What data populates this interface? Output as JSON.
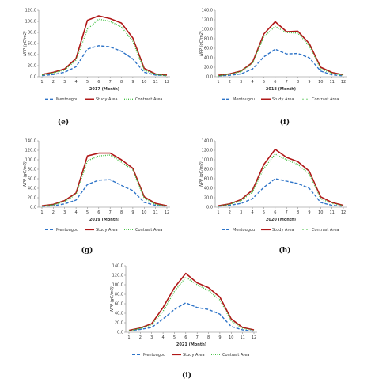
{
  "colors": {
    "mentougou": "#2e74c8",
    "study": "#b01818",
    "contrast": "#3fbf3f",
    "axis": "#7f7f7f"
  },
  "panel_captions": [
    "(e)",
    "(f)",
    "(g)",
    "(h)",
    "(i)"
  ],
  "chart_data": [
    {
      "type": "line",
      "xlabel": "2017 (Month)",
      "ylabel": "NPP (gC/m2)",
      "ylim": [
        0,
        120
      ],
      "yticks": [
        "0.0",
        "20.0",
        "40.0",
        "60.0",
        "80.0",
        "100.0",
        "120.0"
      ],
      "categories": [
        "1",
        "2",
        "3",
        "4",
        "5",
        "6",
        "7",
        "8",
        "9",
        "10",
        "11",
        "12"
      ],
      "legend_position": "bottom",
      "grid": false,
      "series": [
        {
          "name": "Mentougou",
          "style": "dashed",
          "values": [
            2,
            4,
            8,
            18,
            50,
            56,
            54,
            46,
            32,
            8,
            3,
            2
          ]
        },
        {
          "name": "Study Area",
          "style": "solid",
          "values": [
            4,
            8,
            14,
            33,
            102,
            110,
            105,
            97,
            70,
            15,
            5,
            3
          ]
        },
        {
          "name": "Contrast Area",
          "style": "dotted",
          "values": [
            3,
            7,
            12,
            30,
            86,
            104,
            100,
            90,
            64,
            12,
            4,
            2
          ]
        }
      ]
    },
    {
      "type": "line",
      "xlabel": "2018 (Month)",
      "ylabel": "NPP (gC/m2)",
      "ylim": [
        0,
        140
      ],
      "yticks": [
        "0.0",
        "20.0",
        "40.0",
        "60.0",
        "80.0",
        "100.0",
        "120.0",
        "140.0"
      ],
      "categories": [
        "1",
        "2",
        "3",
        "4",
        "5",
        "6",
        "7",
        "8",
        "9",
        "10",
        "11",
        "12"
      ],
      "legend_position": "bottom",
      "grid": false,
      "series": [
        {
          "name": "Mentougou",
          "style": "dashed",
          "values": [
            2,
            3,
            6,
            16,
            42,
            58,
            48,
            49,
            40,
            12,
            4,
            2
          ]
        },
        {
          "name": "Study Area",
          "style": "solid",
          "values": [
            3,
            6,
            12,
            30,
            90,
            116,
            95,
            96,
            70,
            20,
            9,
            4
          ]
        },
        {
          "name": "Contrast Area",
          "style": "dotted",
          "values": [
            2,
            5,
            11,
            28,
            84,
            106,
            93,
            92,
            65,
            17,
            7,
            3
          ]
        }
      ]
    },
    {
      "type": "line",
      "xlabel": "2019 (Month)",
      "ylabel": "NPP (gC/m2)",
      "ylim": [
        0,
        140
      ],
      "yticks": [
        "0.0",
        "20.0",
        "40.0",
        "60.0",
        "80.0",
        "100.0",
        "120.0",
        "140.0"
      ],
      "categories": [
        "1",
        "2",
        "3",
        "4",
        "5",
        "6",
        "7",
        "8",
        "9",
        "10",
        "11",
        "12"
      ],
      "legend_position": "bottom",
      "grid": false,
      "series": [
        {
          "name": "Mentougou",
          "style": "dashed",
          "values": [
            2,
            3,
            7,
            15,
            48,
            57,
            58,
            46,
            35,
            10,
            4,
            2
          ]
        },
        {
          "name": "Study Area",
          "style": "solid",
          "values": [
            3,
            6,
            14,
            30,
            108,
            114,
            114,
            100,
            82,
            22,
            8,
            3
          ]
        },
        {
          "name": "Contrast Area",
          "style": "dotted",
          "values": [
            2,
            5,
            12,
            27,
            98,
            108,
            110,
            95,
            78,
            19,
            6,
            2
          ]
        }
      ]
    },
    {
      "type": "line",
      "xlabel": "2020 (Month)",
      "ylabel": "NPP (gC/m2)",
      "ylim": [
        0,
        140
      ],
      "yticks": [
        "0.0",
        "20.0",
        "40.0",
        "60.0",
        "80.0",
        "100.0",
        "120.0",
        "140.0"
      ],
      "categories": [
        "1",
        "2",
        "3",
        "4",
        "5",
        "6",
        "7",
        "8",
        "9",
        "10",
        "11",
        "12"
      ],
      "legend_position": "bottom",
      "grid": false,
      "series": [
        {
          "name": "Mentougou",
          "style": "dashed",
          "values": [
            2,
            4,
            8,
            18,
            42,
            60,
            55,
            50,
            40,
            10,
            4,
            2
          ]
        },
        {
          "name": "Study Area",
          "style": "solid",
          "values": [
            3,
            7,
            16,
            36,
            90,
            122,
            105,
            96,
            76,
            22,
            10,
            4
          ]
        },
        {
          "name": "Contrast Area",
          "style": "dotted",
          "values": [
            2,
            6,
            14,
            32,
            82,
            112,
            100,
            90,
            70,
            18,
            8,
            3
          ]
        }
      ]
    },
    {
      "type": "line",
      "xlabel": "2021 (Month)",
      "ylabel": "NPP (gC/m2)",
      "ylim": [
        0,
        140
      ],
      "yticks": [
        "0.0",
        "20.0",
        "40.0",
        "60.0",
        "80.0",
        "100.0",
        "120.0",
        "140.0"
      ],
      "categories": [
        "1",
        "2",
        "3",
        "4",
        "5",
        "6",
        "7",
        "8",
        "9",
        "10",
        "11",
        "12"
      ],
      "legend_position": "bottom",
      "grid": false,
      "series": [
        {
          "name": "Mentougou",
          "style": "dashed",
          "values": [
            3,
            6,
            10,
            28,
            48,
            62,
            52,
            48,
            38,
            12,
            5,
            2
          ]
        },
        {
          "name": "Study Area",
          "style": "solid",
          "values": [
            4,
            9,
            18,
            52,
            94,
            124,
            104,
            94,
            74,
            28,
            10,
            5
          ]
        },
        {
          "name": "Contrast Area",
          "style": "dotted",
          "values": [
            3,
            8,
            16,
            44,
            86,
            116,
            100,
            88,
            68,
            24,
            8,
            4
          ]
        }
      ]
    }
  ]
}
